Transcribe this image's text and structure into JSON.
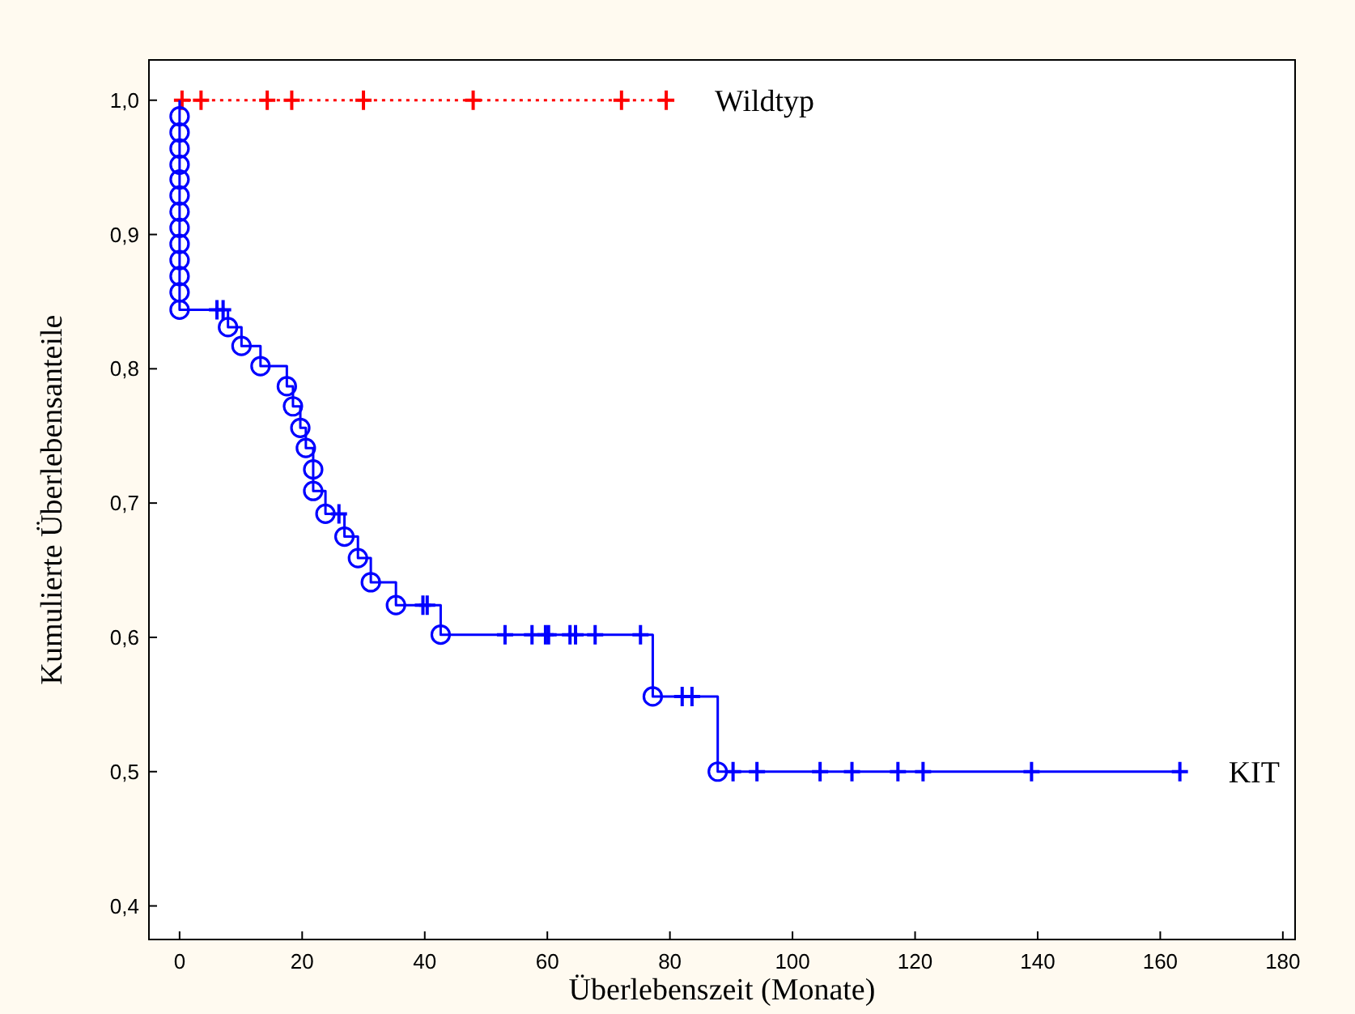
{
  "chart_data": {
    "type": "step",
    "xlabel": "Überlebenszeit (Monate)",
    "ylabel": "Kumulierte Überlebensanteile",
    "xlim": [
      -5,
      182
    ],
    "xticks": [
      0,
      20,
      40,
      60,
      80,
      100,
      120,
      140,
      160,
      180
    ],
    "ylim": [
      0.375,
      1.03
    ],
    "yticks": [
      {
        "value": 0.4,
        "label": "0,4"
      },
      {
        "value": 0.5,
        "label": "0,5"
      },
      {
        "value": 0.6,
        "label": "0,6"
      },
      {
        "value": 0.7,
        "label": "0,7"
      },
      {
        "value": 0.8,
        "label": "0,8"
      },
      {
        "value": 0.9,
        "label": "0,9"
      },
      {
        "value": 1.0,
        "label": "1,0"
      }
    ],
    "grid": false,
    "series": [
      {
        "name": "Wildtyp",
        "color": "#ff0000",
        "line_style": "dotted",
        "marker": "none",
        "x": [
          0,
          79.4
        ],
        "values": [
          1,
          1
        ]
      },
      {
        "type": "scatter",
        "color": "#ff0000",
        "marker": "cross",
        "x": [
          0.4,
          3.5,
          14.3,
          18.3,
          30,
          47.9,
          72.1,
          79.4
        ],
        "values": [
          1,
          1,
          1,
          1,
          1,
          1,
          1,
          1
        ]
      },
      {
        "name": "KIT",
        "color": "#0000ff",
        "line_style": "solid",
        "marker": "none",
        "x": [
          0,
          0,
          7.9,
          10.1,
          13.2,
          17.5,
          18.5,
          19.7,
          20.6,
          21.8,
          21.8,
          23.8,
          26.9,
          29.1,
          31.2,
          35.3,
          42.6,
          77.2,
          87.8,
          163.2
        ],
        "values": [
          1,
          0.844,
          0.831,
          0.817,
          0.802,
          0.787,
          0.772,
          0.756,
          0.741,
          0.725,
          0.709,
          0.692,
          0.675,
          0.659,
          0.641,
          0.624,
          0.602,
          0.556,
          0.5,
          0.5
        ]
      },
      {
        "type": "scatter",
        "color": "#0000ff",
        "marker": "circle",
        "x": [
          0,
          0,
          0,
          0,
          0,
          0,
          0,
          0,
          0,
          0,
          0,
          0,
          0,
          7.9,
          10.1,
          13.2,
          17.5,
          18.5,
          19.7,
          20.6,
          21.8,
          21.8,
          23.8,
          26.9,
          29.1,
          31.2,
          35.3,
          42.6,
          77.2,
          87.8
        ],
        "values": [
          0.988,
          0.976,
          0.964,
          0.952,
          0.941,
          0.929,
          0.917,
          0.905,
          0.893,
          0.881,
          0.869,
          0.857,
          0.844,
          0.831,
          0.817,
          0.802,
          0.787,
          0.772,
          0.756,
          0.741,
          0.725,
          0.709,
          0.692,
          0.675,
          0.659,
          0.641,
          0.624,
          0.602,
          0.556,
          0.5
        ]
      },
      {
        "type": "scatter",
        "color": "#0000ff",
        "marker": "cross",
        "x": [
          6.1,
          7.1,
          26,
          39.7,
          40.4,
          53.1,
          57.5,
          59.7,
          60.2,
          63.7,
          64.6,
          67.8,
          75.2,
          82,
          83.6,
          90.3,
          94.2,
          104.5,
          109.7,
          117.2,
          121.3,
          139,
          163.2
        ],
        "values": [
          0.844,
          0.844,
          0.692,
          0.624,
          0.624,
          0.602,
          0.602,
          0.602,
          0.602,
          0.602,
          0.602,
          0.602,
          0.602,
          0.556,
          0.556,
          0.5,
          0.5,
          0.5,
          0.5,
          0.5,
          0.5,
          0.5,
          0.5
        ]
      }
    ]
  }
}
